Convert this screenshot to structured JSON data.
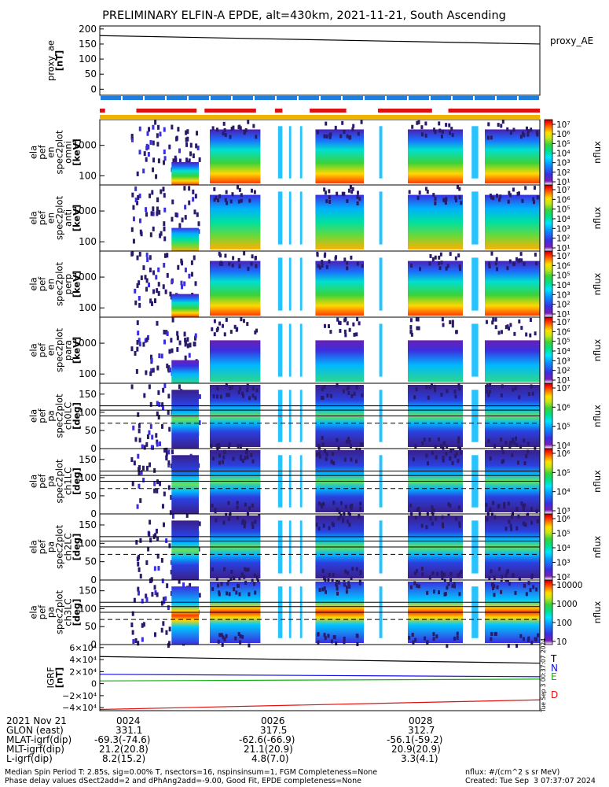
{
  "title": "PRELIMINARY ELFIN-A EPDE, alt=430km, 2021-11-21, South Ascending",
  "colors": {
    "proxy_line": "#000000",
    "science_zone": "#dd1111",
    "orbit_bar": "#1a7fe0",
    "attitude_bar": "#f0b400",
    "field_T": "#000000",
    "field_N": "#1010e0",
    "field_E": "#10b010",
    "field_D": "#e01010"
  },
  "panels": [
    {
      "id": "proxy",
      "ylabel": [
        "proxy_ae",
        "[nT]"
      ],
      "yticks": [
        "200",
        "150",
        "100",
        "50",
        "0"
      ],
      "right_label": "proxy_AE"
    },
    {
      "id": "omni",
      "ylabel": [
        "ela",
        "pef",
        "en",
        "spec2plot",
        "omni",
        "[keV]"
      ],
      "yticks": [
        "1000",
        "100"
      ]
    },
    {
      "id": "anti",
      "ylabel": [
        "ela",
        "pef",
        "en",
        "spec2plot",
        "anti",
        "[keV]"
      ],
      "yticks": [
        "1000",
        "100"
      ]
    },
    {
      "id": "perp",
      "ylabel": [
        "ela",
        "pef",
        "en",
        "spec2plot",
        "perp",
        "[keV]"
      ],
      "yticks": [
        "1000",
        "100"
      ]
    },
    {
      "id": "para",
      "ylabel": [
        "ela",
        "pef",
        "en",
        "spec2plot",
        "para",
        "[keV]"
      ],
      "yticks": [
        "1000",
        "100"
      ]
    },
    {
      "id": "ch0",
      "ylabel": [
        "ela",
        "pef",
        "pa",
        "spec2plot",
        "ch0LC",
        "[deg]"
      ],
      "yticks": [
        "150",
        "100",
        "50",
        "0"
      ]
    },
    {
      "id": "ch1",
      "ylabel": [
        "ela",
        "pef",
        "pa",
        "spec2plot",
        "ch1LC",
        "[deg]"
      ],
      "yticks": [
        "150",
        "100",
        "50",
        "0"
      ]
    },
    {
      "id": "ch2",
      "ylabel": [
        "ela",
        "pef",
        "pa",
        "spec2plot",
        "ch2LC",
        "[deg]"
      ],
      "yticks": [
        "150",
        "100",
        "50",
        "0"
      ]
    },
    {
      "id": "ch3",
      "ylabel": [
        "ela",
        "pef",
        "pa",
        "spec2plot",
        "ch3LC",
        "[deg]"
      ],
      "yticks": [
        "150",
        "100",
        "50",
        "0"
      ]
    },
    {
      "id": "field",
      "ylabel": [
        "IGRF",
        "[nT]"
      ],
      "yticks": [
        "6×10⁴",
        "4×10⁴",
        "2×10⁴",
        "0",
        "−2×10⁴",
        "−4×10⁴"
      ],
      "legend": [
        "T",
        "N",
        "E",
        "D"
      ]
    }
  ],
  "colorbars": [
    {
      "label": "nflux",
      "ticks": [
        "10⁷",
        "10⁶",
        "10⁵",
        "10⁴",
        "10³",
        "10²",
        "10¹"
      ]
    },
    {
      "label": "nflux",
      "ticks": [
        "10⁷",
        "10⁶",
        "10⁵",
        "10⁴",
        "10³",
        "10²",
        "10¹"
      ]
    },
    {
      "label": "nflux",
      "ticks": [
        "10⁷",
        "10⁶",
        "10⁵",
        "10⁴",
        "10³",
        "10²",
        "10¹"
      ]
    },
    {
      "label": "nflux",
      "ticks": [
        "10⁷",
        "10⁶",
        "10⁵",
        "10⁴",
        "10³",
        "10²",
        "10¹"
      ]
    },
    {
      "label": "nflux",
      "ticks": [
        "10⁷",
        "10⁶",
        "10⁵",
        "10⁴"
      ]
    },
    {
      "label": "nflux",
      "ticks": [
        "10⁶",
        "10⁵",
        "10⁴",
        "10³"
      ]
    },
    {
      "label": "nflux",
      "ticks": [
        "10⁶",
        "10⁵",
        "10⁴",
        "10³",
        "10²"
      ]
    },
    {
      "label": "nflux",
      "ticks": [
        "10000",
        "1000",
        "100",
        "10"
      ]
    }
  ],
  "side_stamp": "Tue Sep  3 00:37:07 2024",
  "chart_data": [
    {
      "type": "line",
      "panel": "proxy",
      "title": "proxy_AE",
      "ylabel": "proxy_ae [nT]",
      "ylim": [
        -20,
        210
      ],
      "x": [
        0,
        1
      ],
      "series": [
        {
          "name": "proxy_AE",
          "values": [
            178,
            150
          ]
        }
      ]
    },
    {
      "type": "heatmap",
      "panel": "energy spectrograms (omni, anti, perp, para)",
      "ylabel": "energy [keV]",
      "ylim_log": [
        50,
        7000
      ],
      "zlabel": "nflux",
      "zlim_log": [
        10,
        10000000
      ],
      "data_segments_fraction_of_time": [
        [
          0.07,
          0.225
        ],
        [
          0.25,
          0.365
        ],
        [
          0.405,
          0.415
        ],
        [
          0.43,
          0.435
        ],
        [
          0.455,
          0.46
        ],
        [
          0.49,
          0.6
        ],
        [
          0.635,
          0.642
        ],
        [
          0.7,
          0.825
        ],
        [
          0.845,
          0.86
        ],
        [
          0.875,
          1.0
        ]
      ]
    },
    {
      "type": "heatmap",
      "panel": "pitch-angle spectrograms (ch0LC..ch3LC)",
      "ylabel": "pitch angle [deg]",
      "ylim": [
        0,
        180
      ],
      "reference_lines_deg": [
        118,
        106,
        90,
        70
      ],
      "zlabel": "nflux"
    },
    {
      "type": "line",
      "panel": "field",
      "ylabel": "IGRF [nT]",
      "ylim": [
        -45000,
        65000
      ],
      "x": [
        0,
        1
      ],
      "series": [
        {
          "name": "T",
          "values": [
            45000,
            34000
          ]
        },
        {
          "name": "N",
          "values": [
            15500,
            11500
          ]
        },
        {
          "name": "E",
          "values": [
            4500,
            7500
          ]
        },
        {
          "name": "D",
          "values": [
            -43000,
            -27000
          ]
        }
      ]
    }
  ],
  "footer": {
    "row_labels": [
      "2021 Nov 21",
      "GLON (east)",
      "MLAT-igrf(dip)",
      "MLT-igrf(dip)",
      "L-igrf(dip)"
    ],
    "col1": [
      "0024",
      "331.1",
      "-69.3(-74.6)",
      "21.2(20.8)",
      "8.2(15.2)"
    ],
    "col2": [
      "0026",
      "317.5",
      "-62.6(-66.9)",
      "21.1(20.9)",
      "4.8(7.0)"
    ],
    "col3": [
      "0028",
      "312.7",
      "-56.1(-59.2)",
      "20.9(20.9)",
      "3.3(4.1)"
    ],
    "note1": "Median Spin Period T: 2.85s, sig=0.00% T, nsectors=16, nspinsinsum=1, FGM Completeness=None",
    "note2": "Phase delay values dSect2add=2 and dPhAng2add=-9.00, Good Fit, EPDE completeness=None",
    "units": "nflux: #/(cm^2 s sr MeV)",
    "created": "Created: Tue Sep  3 07:37:07 2024"
  }
}
